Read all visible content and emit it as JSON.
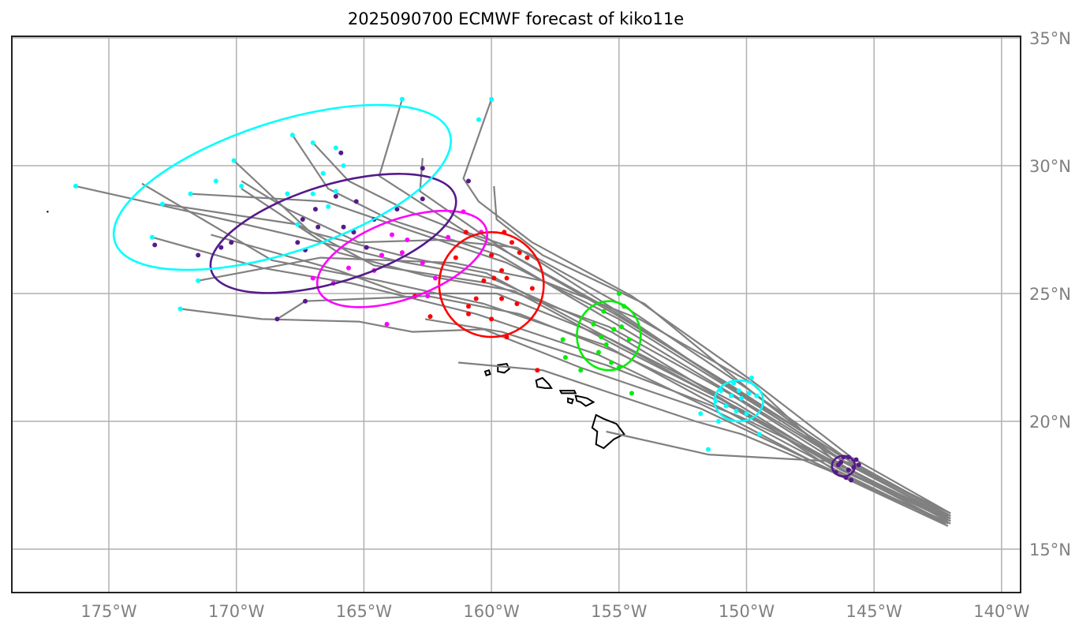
{
  "chart_data": {
    "type": "map",
    "title": "2025090700 ECMWF forecast of kiko11e",
    "lon_range": [
      -178.8,
      -139.3
    ],
    "lat_range": [
      13.4,
      35.05
    ],
    "grid": true,
    "x_ticks": [
      {
        "value": -175,
        "label": "175°W"
      },
      {
        "value": -170,
        "label": "170°W"
      },
      {
        "value": -165,
        "label": "165°W"
      },
      {
        "value": -160,
        "label": "160°W"
      },
      {
        "value": -155,
        "label": "155°W"
      },
      {
        "value": -150,
        "label": "150°W"
      },
      {
        "value": -145,
        "label": "145°W"
      },
      {
        "value": -140,
        "label": "140°W"
      }
    ],
    "y_ticks": [
      {
        "value": 35,
        "label": "35°N"
      },
      {
        "value": 30,
        "label": "30°N"
      },
      {
        "value": 25,
        "label": "25°N"
      },
      {
        "value": 20,
        "label": "20°N"
      },
      {
        "value": 15,
        "label": "15°N"
      }
    ],
    "colors": {
      "track": "#808080",
      "coast": "#000000",
      "grid": "#b0b0b0",
      "frame": "#222222"
    },
    "ellipses": [
      {
        "name": "day-1",
        "color": "#551a8b",
        "cx": -146.2,
        "cy": 18.25,
        "rx": 0.45,
        "ry": 0.4,
        "angle": 0
      },
      {
        "name": "day-2",
        "color": "#00ffff",
        "cx": -150.3,
        "cy": 20.8,
        "rx": 0.95,
        "ry": 0.8,
        "angle": 0
      },
      {
        "name": "day-3",
        "color": "#00ee00",
        "cx": -155.4,
        "cy": 23.35,
        "rx": 1.25,
        "ry": 1.35,
        "angle": 0
      },
      {
        "name": "day-4",
        "color": "#ff0000",
        "cx": -160.0,
        "cy": 25.35,
        "rx": 2.05,
        "ry": 2.05,
        "angle": 0
      },
      {
        "name": "day-5",
        "color": "#ff00ff",
        "cx": -163.5,
        "cy": 26.35,
        "rx": 3.5,
        "ry": 1.55,
        "angle": -20
      },
      {
        "name": "day-6",
        "color": "#551a8b",
        "cx": -166.2,
        "cy": 27.35,
        "rx": 5.0,
        "ry": 1.9,
        "angle": -17
      },
      {
        "name": "day-7",
        "color": "#00ffff",
        "cx": -168.2,
        "cy": 29.15,
        "rx": 6.9,
        "ry": 2.55,
        "angle": -18
      }
    ],
    "tracks": [
      [
        [
          -142.0,
          16.1
        ],
        [
          -146.2,
          18.2
        ],
        [
          -150.5,
          20.6
        ],
        [
          -155.3,
          23.5
        ],
        [
          -160.0,
          25.6
        ],
        [
          -163.8,
          26.3
        ],
        [
          -167.5,
          27.2
        ],
        [
          -170.5,
          27.9
        ],
        [
          -176.3,
          29.2
        ]
      ],
      [
        [
          -142.0,
          16.2
        ],
        [
          -146.1,
          18.4
        ],
        [
          -150.2,
          21.0
        ],
        [
          -155.0,
          24.0
        ],
        [
          -159.4,
          26.2
        ],
        [
          -163.0,
          27.4
        ],
        [
          -166.5,
          28.6
        ],
        [
          -171.8,
          28.9
        ]
      ],
      [
        [
          -142.1,
          16.3
        ],
        [
          -146.0,
          18.5
        ],
        [
          -150.0,
          21.3
        ],
        [
          -154.8,
          24.5
        ],
        [
          -158.6,
          26.6
        ],
        [
          -161.0,
          27.4
        ],
        [
          -164.4,
          29.6
        ],
        [
          -163.5,
          32.6
        ]
      ],
      [
        [
          -142.2,
          16.0
        ],
        [
          -146.3,
          18.0
        ],
        [
          -150.6,
          20.3
        ],
        [
          -155.6,
          23.0
        ],
        [
          -160.3,
          24.6
        ],
        [
          -164.4,
          25.5
        ],
        [
          -168.6,
          26.3
        ],
        [
          -173.7,
          29.3
        ]
      ],
      [
        [
          -142.1,
          15.9
        ],
        [
          -146.4,
          17.9
        ],
        [
          -150.8,
          20.2
        ],
        [
          -155.8,
          22.6
        ],
        [
          -160.6,
          24.2
        ],
        [
          -165.5,
          25.4
        ],
        [
          -169.0,
          26.0
        ],
        [
          -173.3,
          27.2
        ]
      ],
      [
        [
          -142.0,
          16.4
        ],
        [
          -145.9,
          18.6
        ],
        [
          -149.8,
          21.6
        ],
        [
          -154.5,
          24.9
        ],
        [
          -158.4,
          27.0
        ],
        [
          -160.5,
          28.6
        ],
        [
          -161.1,
          29.5
        ],
        [
          -160.0,
          32.6
        ]
      ],
      [
        [
          -142.0,
          16.2
        ],
        [
          -146.0,
          18.3
        ],
        [
          -150.3,
          20.9
        ],
        [
          -155.1,
          23.8
        ],
        [
          -159.7,
          26.5
        ],
        [
          -164.0,
          27.9
        ],
        [
          -166.4,
          29.1
        ],
        [
          -167.8,
          31.2
        ]
      ],
      [
        [
          -142.0,
          16.3
        ],
        [
          -146.2,
          18.6
        ],
        [
          -150.4,
          21.2
        ],
        [
          -155.2,
          24.3
        ],
        [
          -159.9,
          26.9
        ],
        [
          -163.2,
          28.2
        ],
        [
          -165.6,
          29.4
        ],
        [
          -167.0,
          30.9
        ]
      ],
      [
        [
          -142.0,
          16.1
        ],
        [
          -146.3,
          18.1
        ],
        [
          -150.9,
          20.8
        ],
        [
          -155.7,
          23.4
        ],
        [
          -160.2,
          25.8
        ],
        [
          -163.2,
          26.4
        ],
        [
          -167.1,
          27.4
        ],
        [
          -170.1,
          30.2
        ]
      ],
      [
        [
          -142.1,
          16.0
        ],
        [
          -146.1,
          17.8
        ],
        [
          -150.1,
          20.4
        ],
        [
          -155.0,
          22.9
        ],
        [
          -159.1,
          25.1
        ],
        [
          -162.6,
          25.7
        ],
        [
          -166.0,
          26.6
        ],
        [
          -169.8,
          29.1
        ]
      ],
      [
        [
          -142.0,
          16.0
        ],
        [
          -146.5,
          18.0
        ],
        [
          -151.8,
          20.5
        ],
        [
          -156.5,
          22.1
        ],
        [
          -160.3,
          23.6
        ],
        [
          -163.1,
          23.5
        ],
        [
          -165.2,
          23.9
        ],
        [
          -169.0,
          24.0
        ],
        [
          -172.2,
          24.4
        ]
      ],
      [
        [
          -142.2,
          16.1
        ],
        [
          -146.6,
          18.0
        ],
        [
          -150.2,
          19.5
        ],
        [
          -152.0,
          20.0
        ],
        [
          -158.0,
          22.0
        ],
        [
          -161.3,
          22.3
        ]
      ],
      [
        [
          -142.0,
          16.2
        ],
        [
          -146.4,
          18.3
        ],
        [
          -149.8,
          21.5
        ],
        [
          -154.2,
          24.0
        ],
        [
          -158.0,
          25.5
        ],
        [
          -161.5,
          26.2
        ],
        [
          -166.7,
          26.4
        ],
        [
          -171.5,
          25.5
        ]
      ],
      [
        [
          -142.0,
          16.3
        ],
        [
          -146.0,
          18.4
        ],
        [
          -151.5,
          18.7
        ],
        [
          -155.5,
          19.6
        ]
      ],
      [
        [
          -142.1,
          16.2
        ],
        [
          -146.2,
          18.1
        ],
        [
          -150.4,
          20.7
        ],
        [
          -155.3,
          23.2
        ],
        [
          -159.8,
          25.0
        ],
        [
          -163.5,
          25.0
        ],
        [
          -166.0,
          25.9
        ],
        [
          -171.0,
          27.3
        ]
      ],
      [
        [
          -142.0,
          16.1
        ],
        [
          -146.1,
          18.2
        ],
        [
          -150.7,
          21.1
        ],
        [
          -155.4,
          23.7
        ],
        [
          -160.1,
          25.4
        ],
        [
          -164.6,
          26.1
        ],
        [
          -167.6,
          27.7
        ],
        [
          -172.9,
          28.5
        ]
      ],
      [
        [
          -142.0,
          16.4
        ],
        [
          -146.3,
          18.5
        ],
        [
          -150.0,
          20.9
        ],
        [
          -154.9,
          24.2
        ],
        [
          -159.0,
          26.8
        ],
        [
          -162.0,
          27.1
        ],
        [
          -165.2,
          27.0
        ],
        [
          -168.0,
          28.3
        ],
        [
          -169.8,
          29.4
        ]
      ],
      [
        [
          -142.1,
          16.0
        ],
        [
          -146.0,
          18.0
        ],
        [
          -150.5,
          20.5
        ],
        [
          -155.1,
          22.7
        ],
        [
          -158.9,
          24.2
        ],
        [
          -162.5,
          24.9
        ],
        [
          -167.3,
          24.7
        ],
        [
          -168.4,
          24.0
        ]
      ],
      [
        [
          -142.0,
          16.2
        ],
        [
          -146.2,
          18.4
        ],
        [
          -149.6,
          21.0
        ],
        [
          -154.0,
          24.6
        ],
        [
          -158.0,
          26.5
        ],
        [
          -159.8,
          27.9
        ],
        [
          -159.9,
          29.2
        ]
      ],
      [
        [
          -142.0,
          16.3
        ],
        [
          -146.4,
          18.7
        ],
        [
          -150.6,
          21.4
        ],
        [
          -155.0,
          24.1
        ],
        [
          -159.2,
          26.5
        ],
        [
          -162.8,
          29.0
        ],
        [
          -162.7,
          30.3
        ]
      ],
      [
        [
          -142.1,
          16.1
        ],
        [
          -146.3,
          18.3
        ],
        [
          -150.3,
          20.2
        ],
        [
          -155.5,
          22.2
        ],
        [
          -159.6,
          23.5
        ],
        [
          -162.6,
          24.0
        ]
      ]
    ],
    "points": [
      {
        "color": "#551a8b",
        "coords": [
          [
            -146.3,
            18.4
          ],
          [
            -146.0,
            18.6
          ],
          [
            -145.8,
            18.2
          ],
          [
            -146.5,
            18.0
          ],
          [
            -146.1,
            17.8
          ],
          [
            -145.6,
            18.3
          ],
          [
            -146.2,
            18.6
          ],
          [
            -145.9,
            17.7
          ],
          [
            -146.4,
            18.3
          ],
          [
            -145.7,
            18.5
          ],
          [
            -146.0,
            18.1
          ]
        ]
      },
      {
        "color": "#00ffff",
        "coords": [
          [
            -150.5,
            21.5
          ],
          [
            -150.2,
            20.9
          ],
          [
            -150.8,
            20.6
          ],
          [
            -149.9,
            21.1
          ],
          [
            -150.4,
            20.4
          ],
          [
            -151.2,
            20.8
          ],
          [
            -149.6,
            21.0
          ],
          [
            -150.0,
            20.3
          ],
          [
            -151.0,
            21.2
          ],
          [
            -150.6,
            21.0
          ],
          [
            -149.8,
            21.7
          ],
          [
            -151.8,
            20.3
          ],
          [
            -149.5,
            19.5
          ],
          [
            -151.5,
            18.9
          ],
          [
            -150.3,
            21.2
          ],
          [
            -151.1,
            20.0
          ]
        ]
      },
      {
        "color": "#00ee00",
        "coords": [
          [
            -155.0,
            25.0
          ],
          [
            -155.6,
            24.3
          ],
          [
            -154.8,
            24.5
          ],
          [
            -155.2,
            23.6
          ],
          [
            -155.5,
            23.0
          ],
          [
            -154.9,
            23.7
          ],
          [
            -155.8,
            22.7
          ],
          [
            -155.3,
            22.3
          ],
          [
            -156.0,
            23.8
          ],
          [
            -154.6,
            23.2
          ],
          [
            -157.2,
            23.2
          ],
          [
            -157.1,
            22.5
          ],
          [
            -156.5,
            22.0
          ],
          [
            -154.5,
            21.1
          ],
          [
            -155.0,
            22.1
          ],
          [
            -155.7,
            23.3
          ]
        ]
      },
      {
        "color": "#ff0000",
        "coords": [
          [
            -160.0,
            26.5
          ],
          [
            -159.5,
            27.4
          ],
          [
            -159.2,
            27.0
          ],
          [
            -158.9,
            26.6
          ],
          [
            -159.6,
            25.9
          ],
          [
            -159.9,
            25.6
          ],
          [
            -160.3,
            25.5
          ],
          [
            -159.4,
            25.6
          ],
          [
            -158.4,
            25.2
          ],
          [
            -160.6,
            24.8
          ],
          [
            -159.6,
            24.8
          ],
          [
            -159.0,
            24.6
          ],
          [
            -160.9,
            24.5
          ],
          [
            -160.0,
            24.0
          ],
          [
            -159.4,
            23.3
          ],
          [
            -160.9,
            24.2
          ],
          [
            -161.4,
            26.4
          ],
          [
            -161.0,
            27.4
          ],
          [
            -158.6,
            26.4
          ],
          [
            -163.0,
            24.9
          ],
          [
            -162.4,
            24.1
          ],
          [
            -158.2,
            22.0
          ]
        ]
      },
      {
        "color": "#ff00ff",
        "coords": [
          [
            -163.3,
            27.1
          ],
          [
            -161.7,
            27.2
          ],
          [
            -161.1,
            28.2
          ],
          [
            -163.5,
            26.6
          ],
          [
            -164.3,
            26.5
          ],
          [
            -162.7,
            26.2
          ],
          [
            -162.2,
            25.6
          ],
          [
            -164.6,
            25.9
          ],
          [
            -166.2,
            25.4
          ],
          [
            -167.0,
            25.6
          ],
          [
            -165.6,
            26.0
          ],
          [
            -164.1,
            23.8
          ],
          [
            -162.5,
            24.9
          ],
          [
            -160.4,
            27.4
          ],
          [
            -163.9,
            27.3
          ]
        ]
      },
      {
        "color": "#551a8b",
        "coords": [
          [
            -165.9,
            30.5
          ],
          [
            -166.1,
            28.8
          ],
          [
            -165.3,
            28.6
          ],
          [
            -166.9,
            28.3
          ],
          [
            -167.4,
            27.9
          ],
          [
            -167.6,
            27.0
          ],
          [
            -165.8,
            27.6
          ],
          [
            -164.6,
            27.9
          ],
          [
            -163.7,
            28.3
          ],
          [
            -162.7,
            28.7
          ],
          [
            -160.9,
            29.4
          ],
          [
            -162.7,
            29.9
          ],
          [
            -164.9,
            26.8
          ],
          [
            -166.8,
            27.6
          ],
          [
            -167.3,
            26.7
          ],
          [
            -170.2,
            27.0
          ],
          [
            -170.6,
            26.8
          ],
          [
            -171.5,
            26.5
          ],
          [
            -173.2,
            26.9
          ],
          [
            -167.3,
            24.7
          ],
          [
            -168.4,
            24.0
          ],
          [
            -165.4,
            27.4
          ]
        ]
      },
      {
        "color": "#00ffff",
        "coords": [
          [
            -176.3,
            29.2
          ],
          [
            -173.3,
            27.2
          ],
          [
            -172.9,
            28.5
          ],
          [
            -171.8,
            28.9
          ],
          [
            -170.8,
            29.4
          ],
          [
            -170.1,
            30.2
          ],
          [
            -169.8,
            29.2
          ],
          [
            -167.8,
            31.2
          ],
          [
            -167.0,
            30.9
          ],
          [
            -166.1,
            30.7
          ],
          [
            -165.8,
            30.0
          ],
          [
            -167.6,
            27.7
          ],
          [
            -168.0,
            28.9
          ],
          [
            -167.0,
            28.9
          ],
          [
            -166.4,
            28.4
          ],
          [
            -166.1,
            29.0
          ],
          [
            -163.5,
            32.6
          ],
          [
            -160.0,
            32.6
          ],
          [
            -160.5,
            31.8
          ],
          [
            -171.5,
            25.5
          ],
          [
            -172.2,
            24.4
          ],
          [
            -166.6,
            29.7
          ]
        ]
      }
    ],
    "coastlines": [
      "Kauai",
      "Oahu",
      "Molokai",
      "Maui",
      "Lanai",
      "Hawaii",
      "Niihau"
    ],
    "marker": {
      "lon": -177.4,
      "lat": 28.2
    }
  }
}
